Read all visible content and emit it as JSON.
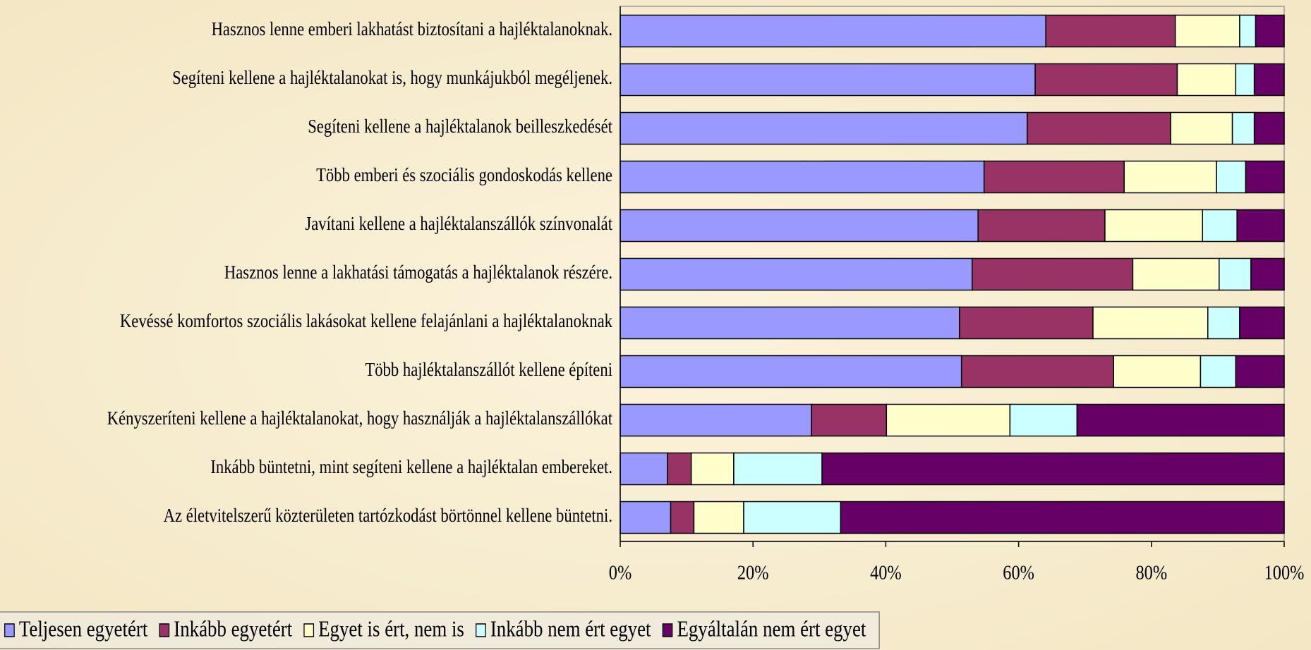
{
  "chart_data": {
    "type": "stacked_barh",
    "categories": [
      "Hasznos lenne emberi lakhatást biztosítani a hajléktalanoknak.",
      "Segíteni kellene a hajléktalanokat is, hogy munkájukból megéljenek.",
      "Segíteni kellene a hajléktalanok beilleszkedését",
      "Több emberi és szociális gondoskodás kellene",
      "Javítani kellene a hajléktalanszállók színvonalát",
      "Hasznos lenne a lakhatási támogatás a hajléktalanok részére.",
      "Kevéssé komfortos szociális lakásokat kellene  felajánlani a hajléktalanoknak",
      "Több hajléktalanszállót kellene építeni",
      "Kényszeríteni kellene  a hajléktalanokat, hogy használják a hajléktalanszállókat",
      "Inkább büntetni, mint segíteni kellene a hajléktalan embereket.",
      "Az életvitelszerű közterületen tartózkodást börtönnel kellene büntetni."
    ],
    "series": [
      {
        "name": "Teljesen egyetért",
        "color": "#9999ff",
        "values": [
          64.1,
          62.5,
          61.3,
          54.8,
          53.9,
          53.0,
          51.1,
          51.4,
          28.8,
          7.1,
          7.6
        ]
      },
      {
        "name": "Inkább egyetért",
        "color": "#993366",
        "values": [
          19.5,
          21.4,
          21.6,
          21.1,
          19.1,
          24.2,
          20.1,
          22.9,
          11.3,
          3.6,
          3.5
        ]
      },
      {
        "name": "Egyet is ért, nem is",
        "color": "#ffffcc",
        "values": [
          9.7,
          8.8,
          9.3,
          13.9,
          14.7,
          13.0,
          17.3,
          13.1,
          18.6,
          6.4,
          7.5
        ]
      },
      {
        "name": "Inkább nem ért egyet",
        "color": "#ccffff",
        "values": [
          2.4,
          2.8,
          3.3,
          4.4,
          5.2,
          4.8,
          4.8,
          5.3,
          10.1,
          13.3,
          14.6
        ]
      },
      {
        "name": "Egyáltalán nem ért egyet",
        "color": "#660066",
        "values": [
          4.3,
          4.5,
          4.5,
          5.8,
          7.1,
          5.0,
          6.7,
          7.3,
          31.2,
          69.6,
          66.8
        ]
      }
    ],
    "xlim": [
      0,
      100
    ],
    "xticks": [
      {
        "value": 0,
        "label": "0%"
      },
      {
        "value": 20,
        "label": "20%"
      },
      {
        "value": 40,
        "label": "40%"
      },
      {
        "value": 60,
        "label": "60%"
      },
      {
        "value": 80,
        "label": "80%"
      },
      {
        "value": 100,
        "label": "100%"
      }
    ],
    "legend": "bottom"
  }
}
